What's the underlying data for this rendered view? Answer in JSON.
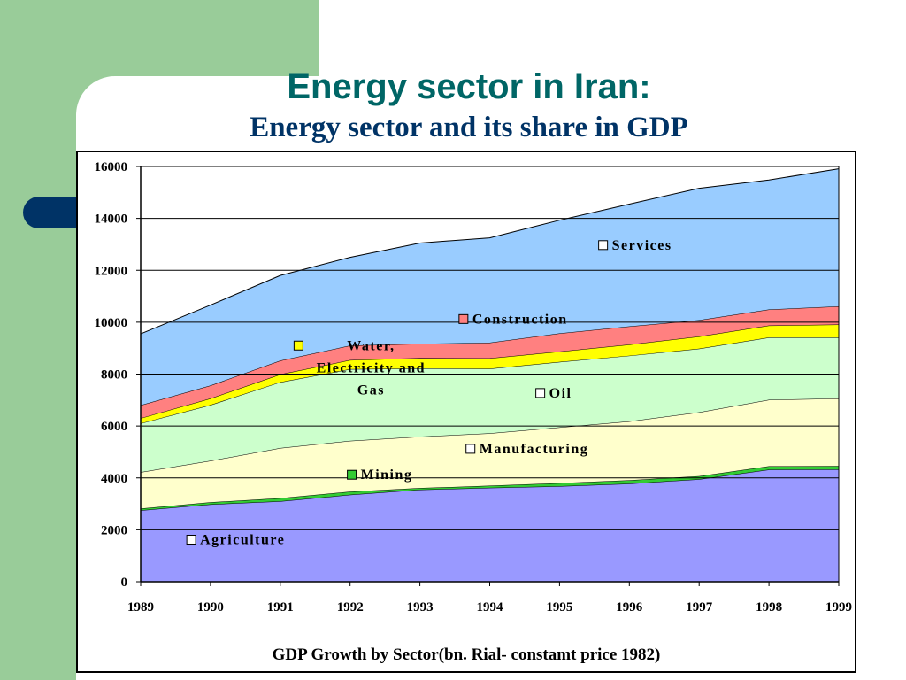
{
  "slide": {
    "title": "Energy sector in Iran:",
    "subtitle": "Energy sector and its share in GDP"
  },
  "colors": {
    "background_green": "#99cc99",
    "accent_navy": "#003366",
    "title_teal": "#006666"
  },
  "chart_data": {
    "type": "area",
    "stacked": true,
    "title": "",
    "xlabel": "GDP Growth by Sector(bn. Rial- constamt price 1982)",
    "ylabel": "",
    "x": [
      1989,
      1990,
      1991,
      1992,
      1993,
      1994,
      1995,
      1996,
      1997,
      1998,
      1999
    ],
    "ylim": [
      0,
      16000
    ],
    "yticks": [
      0,
      2000,
      4000,
      6000,
      8000,
      10000,
      12000,
      14000,
      16000
    ],
    "grid": "horizontal",
    "series": [
      {
        "name": "Agriculture",
        "color": "#9999ff",
        "values": [
          2750,
          2980,
          3100,
          3350,
          3550,
          3620,
          3680,
          3780,
          3950,
          4320,
          4330
        ]
      },
      {
        "name": "Mining",
        "color": "#33cc33",
        "values": [
          70,
          80,
          120,
          120,
          60,
          80,
          120,
          130,
          120,
          130,
          130
        ]
      },
      {
        "name": "Manufacturing",
        "color": "#ffffcc",
        "values": [
          1400,
          1600,
          1930,
          1960,
          1980,
          2020,
          2150,
          2270,
          2460,
          2560,
          2600
        ]
      },
      {
        "name": "Oil",
        "color": "#ccffcc",
        "values": [
          1880,
          2150,
          2540,
          2760,
          2630,
          2490,
          2520,
          2530,
          2450,
          2400,
          2350
        ]
      },
      {
        "name": "Water, Electricity and Gas",
        "color": "#ffff00",
        "values": [
          200,
          250,
          300,
          350,
          400,
          400,
          400,
          430,
          470,
          460,
          500
        ]
      },
      {
        "name": "Construction",
        "color": "#ff8080",
        "values": [
          500,
          500,
          530,
          560,
          550,
          600,
          700,
          700,
          630,
          620,
          700
        ]
      },
      {
        "name": "Services",
        "color": "#99ccff",
        "values": [
          2750,
          3100,
          3280,
          3400,
          3880,
          4040,
          4360,
          4710,
          5080,
          4990,
          5300
        ]
      }
    ],
    "labels": [
      {
        "series": "Services",
        "text": "Services",
        "x": 1996.6,
        "y": 12800,
        "swatch": "#ffffff"
      },
      {
        "series": "Construction",
        "text": "Construction",
        "x": 1994.6,
        "y": 9950,
        "swatch": "#ff8080"
      },
      {
        "series": "Water, Electricity and Gas",
        "text": "Water, Electricity and Gas",
        "x": 1992.3,
        "y": 9100,
        "swatch": "#ffff00"
      },
      {
        "series": "Oil",
        "text": "Oil",
        "x": 1995.7,
        "y": 7100,
        "swatch": "#ffffff"
      },
      {
        "series": "Manufacturing",
        "text": "Manufacturing",
        "x": 1994.7,
        "y": 4950,
        "swatch": "#ffffff"
      },
      {
        "series": "Mining",
        "text": "Mining",
        "x": 1993.0,
        "y": 3950,
        "swatch": "#33cc33"
      },
      {
        "series": "Agriculture",
        "text": "Agriculture",
        "x": 1990.7,
        "y": 1450,
        "swatch": "#ffffff"
      }
    ]
  }
}
